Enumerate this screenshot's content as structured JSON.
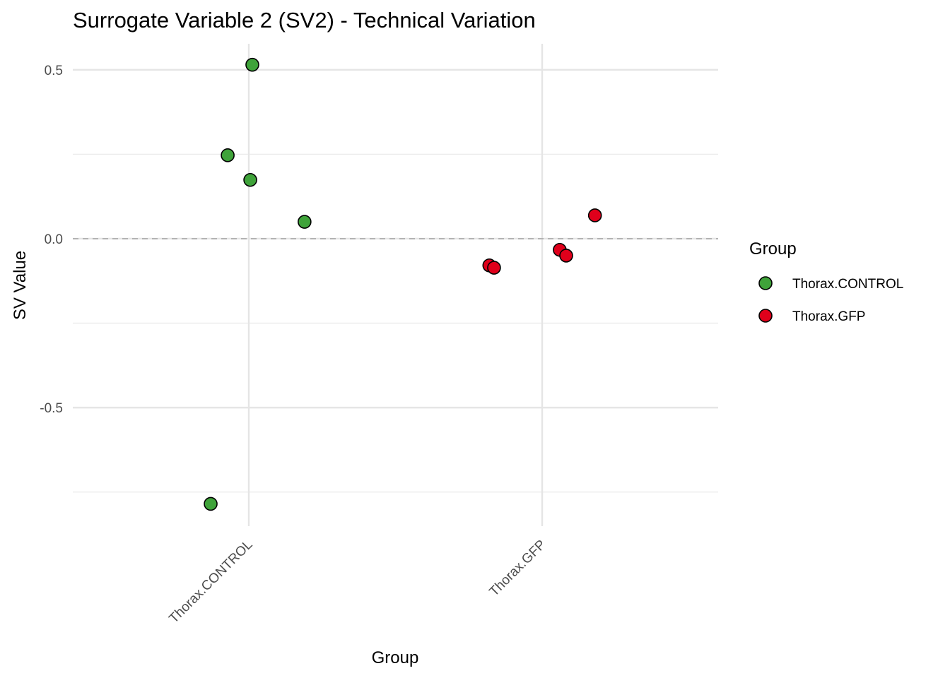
{
  "chart_data": {
    "type": "scatter",
    "title": "Surrogate Variable 2 (SV2) - Technical Variation",
    "xlabel": "Group",
    "ylabel": "SV Value",
    "categories": [
      "Thorax.CONTROL",
      "Thorax.GFP"
    ],
    "xlim": [
      0.4,
      2.6
    ],
    "ylim": [
      -0.851,
      0.577
    ],
    "yticks": [
      0.5,
      0.0,
      -0.5
    ],
    "ytick_labels": [
      "0.5",
      "0.0",
      "-0.5"
    ],
    "minor_y_gridlines": [
      0.25,
      -0.25,
      -0.75
    ],
    "grid": true,
    "reference_line": {
      "y": 0.0,
      "style": "dashed",
      "color": "#b3b3b3"
    },
    "legend": {
      "title": "Group",
      "placement": "right",
      "entries": [
        {
          "label": "Thorax.CONTROL",
          "color": "#3fa33a"
        },
        {
          "label": "Thorax.GFP",
          "color": "#e0001b"
        }
      ]
    },
    "series": [
      {
        "name": "Thorax.CONTROL",
        "color": "#3fa33a",
        "x": [
          1.012,
          0.928,
          1.005,
          1.19,
          0.87
        ],
        "y": [
          0.515,
          0.247,
          0.174,
          0.05,
          -0.785
        ]
      },
      {
        "name": "Thorax.GFP",
        "color": "#e0001b",
        "x": [
          1.82,
          1.836,
          2.06,
          2.082,
          2.18
        ],
        "y": [
          -0.079,
          -0.086,
          -0.033,
          -0.05,
          0.069
        ]
      }
    ]
  }
}
